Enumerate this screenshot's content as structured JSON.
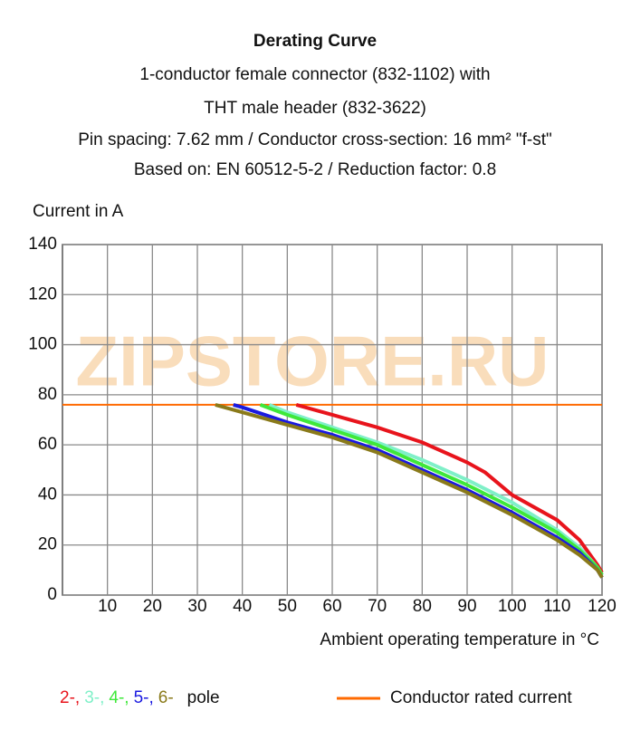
{
  "chart_data": {
    "type": "line",
    "title": "Derating Curve",
    "subtitle": [
      "1-conductor female connector (832-1102) with",
      "THT male header (832-3622)",
      "Pin spacing: 7.62 mm / Conductor cross-section: 16 mm² \"f-st\"",
      "Based on: EN 60512-5-2 / Reduction factor: 0.8"
    ],
    "y_label": "Current in A",
    "x_label": "Ambient operating temperature in °C",
    "watermark": "ZIPSTORE.RU",
    "xlim": [
      0,
      120
    ],
    "xticks": [
      10,
      20,
      30,
      40,
      50,
      60,
      70,
      80,
      90,
      100,
      110,
      120
    ],
    "ylim": [
      0,
      140
    ],
    "yticks": [
      0,
      20,
      40,
      60,
      80,
      100,
      120,
      140
    ],
    "grid": true,
    "series": [
      {
        "name": "2-,",
        "color": "#e8141c",
        "x": [
          52,
          60,
          70,
          80,
          90,
          94,
          100,
          110,
          115,
          119,
          120
        ],
        "values": [
          76,
          72,
          67,
          61,
          53,
          49,
          40,
          30,
          22,
          12,
          9
        ]
      },
      {
        "name": "3-,",
        "color": "#7ff0c8",
        "x": [
          46,
          50,
          60,
          70,
          80,
          90,
          100,
          110,
          115,
          119,
          120
        ],
        "values": [
          76,
          73,
          67,
          61,
          54,
          46,
          37,
          26,
          19,
          11,
          8
        ]
      },
      {
        "name": "4-,",
        "color": "#3ee83a",
        "x": [
          44,
          50,
          60,
          70,
          80,
          90,
          100,
          110,
          115,
          119,
          120
        ],
        "values": [
          76,
          72,
          66,
          60,
          52,
          44,
          35,
          25,
          18,
          11,
          8
        ]
      },
      {
        "name": "5-,",
        "color": "#1a1ae0",
        "x": [
          38,
          40,
          50,
          60,
          70,
          80,
          90,
          100,
          110,
          115,
          119,
          120
        ],
        "values": [
          76,
          75,
          69,
          64,
          58,
          50,
          42,
          33,
          23,
          17,
          10,
          7
        ]
      },
      {
        "name": "6-",
        "color": "#8a7a1a",
        "x": [
          34,
          40,
          50,
          60,
          70,
          80,
          90,
          100,
          110,
          115,
          119,
          120
        ],
        "values": [
          76,
          73,
          68,
          63,
          57,
          49,
          41,
          32,
          22,
          16,
          10,
          7
        ]
      }
    ],
    "legend_suffix": "pole",
    "reference_lines": [
      {
        "name": "Conductor rated current",
        "value": 76,
        "color": "#ff6a00"
      }
    ]
  }
}
